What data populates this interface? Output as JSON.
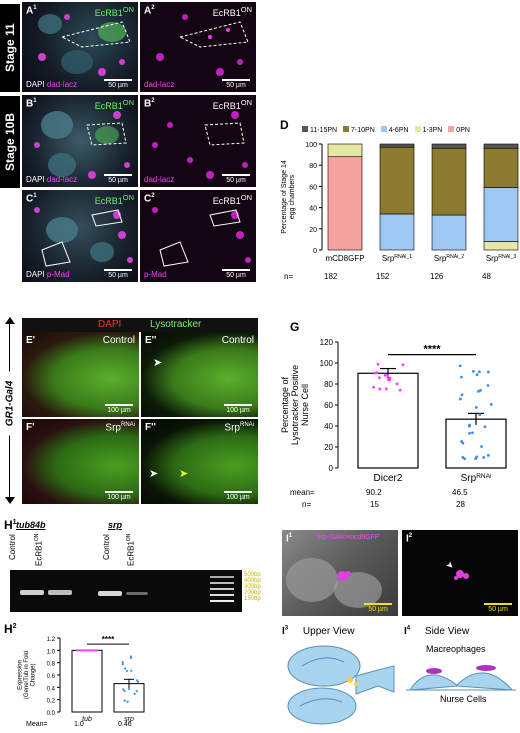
{
  "stage_labels": [
    "Stage 11",
    "Stage 10B"
  ],
  "panels_A": [
    {
      "label": "A",
      "sup": "1",
      "tr": "EcRB1",
      "tr_sup": "ON",
      "bl_a": "DAPI",
      "bl_b": "dad-lacz",
      "scale": "50 µm"
    },
    {
      "label": "A",
      "sup": "2",
      "tr": "EcRB1",
      "tr_sup": "ON",
      "bl_b": "dad-lacz",
      "scale": "50 µm"
    }
  ],
  "panels_B": [
    {
      "label": "B",
      "sup": "1",
      "tr": "EcRB1",
      "tr_sup": "ON",
      "bl_a": "DAPI",
      "bl_b": "dad-lacz",
      "scale": "50 µm"
    },
    {
      "label": "B",
      "sup": "2",
      "tr": "EcRB1",
      "tr_sup": "ON",
      "bl_b": "dad-lacz",
      "scale": "50 µm"
    }
  ],
  "panels_C": [
    {
      "label": "C",
      "sup": "1",
      "tr": "EcRB1",
      "tr_sup": "ON",
      "bl_a": "DAPI",
      "bl_b": "p-Mad",
      "scale": "50 µm"
    },
    {
      "label": "C",
      "sup": "2",
      "tr": "EcRB1",
      "tr_sup": "ON",
      "bl_b": "p-Mad",
      "scale": "50 µm"
    }
  ],
  "panel_D": {
    "letter": "D",
    "legend": [
      "11-15PN",
      "7-10PN",
      "4-6PN",
      "1-3PN",
      "0PN"
    ],
    "n_label": "n=",
    "n_values": [
      "182",
      "152",
      "126",
      "48"
    ]
  },
  "panel_E": {
    "side_label": "GR1-Gal4",
    "header_dapi": "DAPI",
    "header_lyso": "Lysotracker",
    "tiles": [
      {
        "label": "E'",
        "cond": "Control",
        "scale": "100 µm"
      },
      {
        "label": "E''",
        "cond": "Control",
        "scale": "100 µm"
      },
      {
        "label": "F'",
        "cond": "Srp",
        "cond_sup": "RNAi",
        "scale": "100 µm"
      },
      {
        "label": "F''",
        "cond": "Srp",
        "cond_sup": "RNAi",
        "scale": "100 µm"
      }
    ]
  },
  "panel_G": {
    "letter": "G",
    "mean_label": "mean=",
    "n_label": "n=",
    "means": [
      "90.2",
      "46.5"
    ],
    "ns": [
      "15",
      "28"
    ],
    "sig": "****"
  },
  "panel_H1": {
    "letter": "H",
    "sup": "1",
    "gene1": "tub84b",
    "gene2": "srp",
    "lanes": [
      "Control",
      "EcRB1",
      "Control",
      "EcRB1"
    ],
    "lane_sups": [
      "",
      "ON",
      "",
      "ON"
    ],
    "ladder": [
      "500bp",
      "400bp",
      "300bp",
      "200bp",
      "150bp"
    ]
  },
  "panel_H2": {
    "letter": "H",
    "sup": "2",
    "sig": "****",
    "mean_label": "Mean=",
    "means": [
      "1.0",
      "0.46"
    ]
  },
  "panel_I": {
    "i1": {
      "letter": "I",
      "sup": "1",
      "text": "Srp-Gal4>mcd8GFP",
      "scale": "50 µm"
    },
    "i2": {
      "letter": "I",
      "sup": "2",
      "scale": "50 µm"
    },
    "i3": {
      "letter": "I",
      "sup": "3",
      "title": "Upper View"
    },
    "i4": {
      "letter": "I",
      "sup": "4",
      "title": "Side View",
      "label_top": "Macreophages",
      "label_bottom": "Nurse Cells"
    }
  },
  "chart_data": [
    {
      "type": "bar",
      "stacked": true,
      "title": "",
      "ylabel": "Percentage of Stage 14 egg chambers",
      "categories": [
        "mCD8GFP",
        "SrpRNAi_1",
        "SrpRNAi_2",
        "SrpRNAi_3"
      ],
      "category_labels": [
        {
          "base": "mCD8GFP",
          "sup": ""
        },
        {
          "base": "Srp",
          "sup": "RNAi_1"
        },
        {
          "base": "Srp",
          "sup": "RNAi_2"
        },
        {
          "base": "Srp",
          "sup": "RNAi_3"
        }
      ],
      "ylim": [
        0,
        100
      ],
      "yticks": [
        0,
        20,
        40,
        60,
        80,
        100
      ],
      "legend_position": "top",
      "series": [
        {
          "name": "0PN",
          "color": "#f4a3a0",
          "values": [
            88,
            0,
            0,
            0
          ]
        },
        {
          "name": "1-3PN",
          "color": "#e6e6a6",
          "values": [
            12,
            0,
            0,
            8
          ]
        },
        {
          "name": "4-6PN",
          "color": "#9ec7f1",
          "values": [
            0,
            34,
            33,
            51
          ]
        },
        {
          "name": "7-10PN",
          "color": "#8b7a30",
          "values": [
            0,
            63,
            63,
            37
          ]
        },
        {
          "name": "11-15PN",
          "color": "#555555",
          "values": [
            0,
            3,
            4,
            4
          ]
        }
      ]
    },
    {
      "type": "bar",
      "title": "",
      "ylabel": "Percentage of Lysotracker Positive Nurse Cell",
      "categories": [
        "Dicer2",
        "SrpRNAi"
      ],
      "category_labels": [
        {
          "base": "Dicer2",
          "sup": ""
        },
        {
          "base": "Srp",
          "sup": "RNAi"
        }
      ],
      "values": [
        90.2,
        46.5
      ],
      "errors": [
        4.5,
        5.5
      ],
      "point_colors": [
        "#ff3cff",
        "#3c8cf0"
      ],
      "ylim": [
        0,
        120
      ],
      "yticks": [
        0,
        20,
        40,
        60,
        80,
        100,
        120
      ]
    },
    {
      "type": "bar",
      "title": "",
      "ylabel": "Expression (Gene/Tub in Fold Change)",
      "categories": [
        "tub",
        "srp"
      ],
      "values": [
        1.0,
        0.46
      ],
      "errors": [
        0.0,
        0.07
      ],
      "point_colors": [
        "#ff3cff",
        "#3c8cf0"
      ],
      "ylim": [
        0,
        1.2
      ],
      "yticks": [
        0.0,
        0.2,
        0.4,
        0.6,
        0.8,
        1.0,
        1.2
      ]
    }
  ]
}
